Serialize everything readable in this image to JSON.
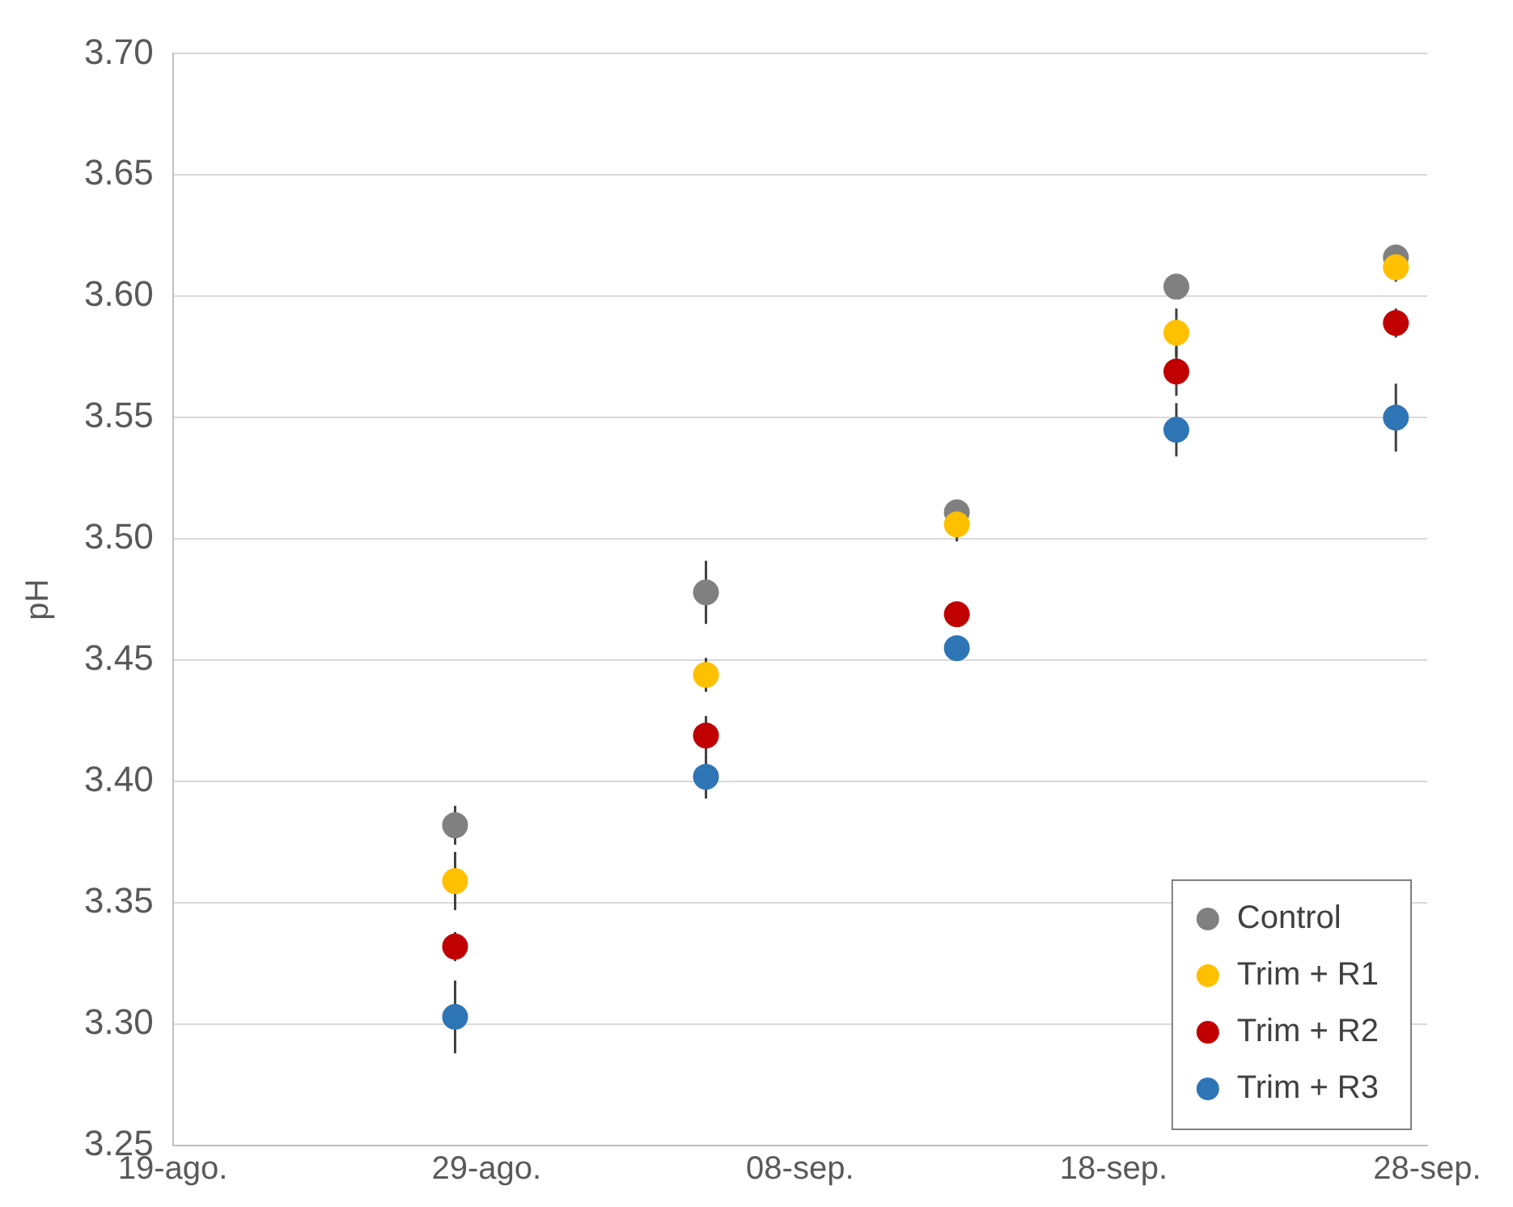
{
  "chart_data": {
    "type": "scatter",
    "ylabel": "pH",
    "x": [
      "--08-28",
      "--09-05",
      "--09-13",
      "--09-20",
      "--09-27"
    ],
    "series": [
      {
        "name": "Control",
        "color": "#808080",
        "values": [
          3.382,
          3.478,
          3.511,
          3.604,
          3.616
        ],
        "errors": [
          0.008,
          0.013,
          0.003,
          0.004,
          0.003
        ]
      },
      {
        "name": "Trim + R1",
        "color": "#ffc000",
        "values": [
          3.359,
          3.444,
          3.506,
          3.585,
          3.612
        ],
        "errors": [
          0.012,
          0.007,
          0.007,
          0.01,
          0.006
        ]
      },
      {
        "name": "Trim + R2",
        "color": "#c00000",
        "values": [
          3.332,
          3.419,
          3.469,
          3.569,
          3.589
        ],
        "errors": [
          0.006,
          0.008,
          null,
          0.01,
          0.006
        ]
      },
      {
        "name": "Trim + R3",
        "color": "#2e75b6",
        "values": [
          3.303,
          3.402,
          3.455,
          3.545,
          3.55
        ],
        "errors": [
          0.015,
          0.009,
          null,
          0.011,
          0.014
        ]
      }
    ],
    "xlim": [
      "--08-19",
      "--09-28"
    ],
    "xticks": [
      {
        "value": "--08-19",
        "label": "19-ago."
      },
      {
        "value": "--08-29",
        "label": "29-ago."
      },
      {
        "value": "--09-08",
        "label": "08-sep."
      },
      {
        "value": "--09-18",
        "label": "18-sep."
      },
      {
        "value": "--09-28",
        "label": "28-sep."
      }
    ],
    "ylim": [
      3.25,
      3.7
    ],
    "yticks": [
      {
        "value": 3.25,
        "label": "3.25"
      },
      {
        "value": 3.3,
        "label": "3.30"
      },
      {
        "value": 3.35,
        "label": "3.35"
      },
      {
        "value": 3.4,
        "label": "3.40"
      },
      {
        "value": 3.45,
        "label": "3.45"
      },
      {
        "value": 3.5,
        "label": "3.50"
      },
      {
        "value": 3.55,
        "label": "3.55"
      },
      {
        "value": 3.6,
        "label": "3.60"
      },
      {
        "value": 3.65,
        "label": "3.65"
      },
      {
        "value": 3.7,
        "label": "3.70"
      }
    ],
    "grid": "y",
    "legend": "bottom right",
    "marker": "circle"
  }
}
